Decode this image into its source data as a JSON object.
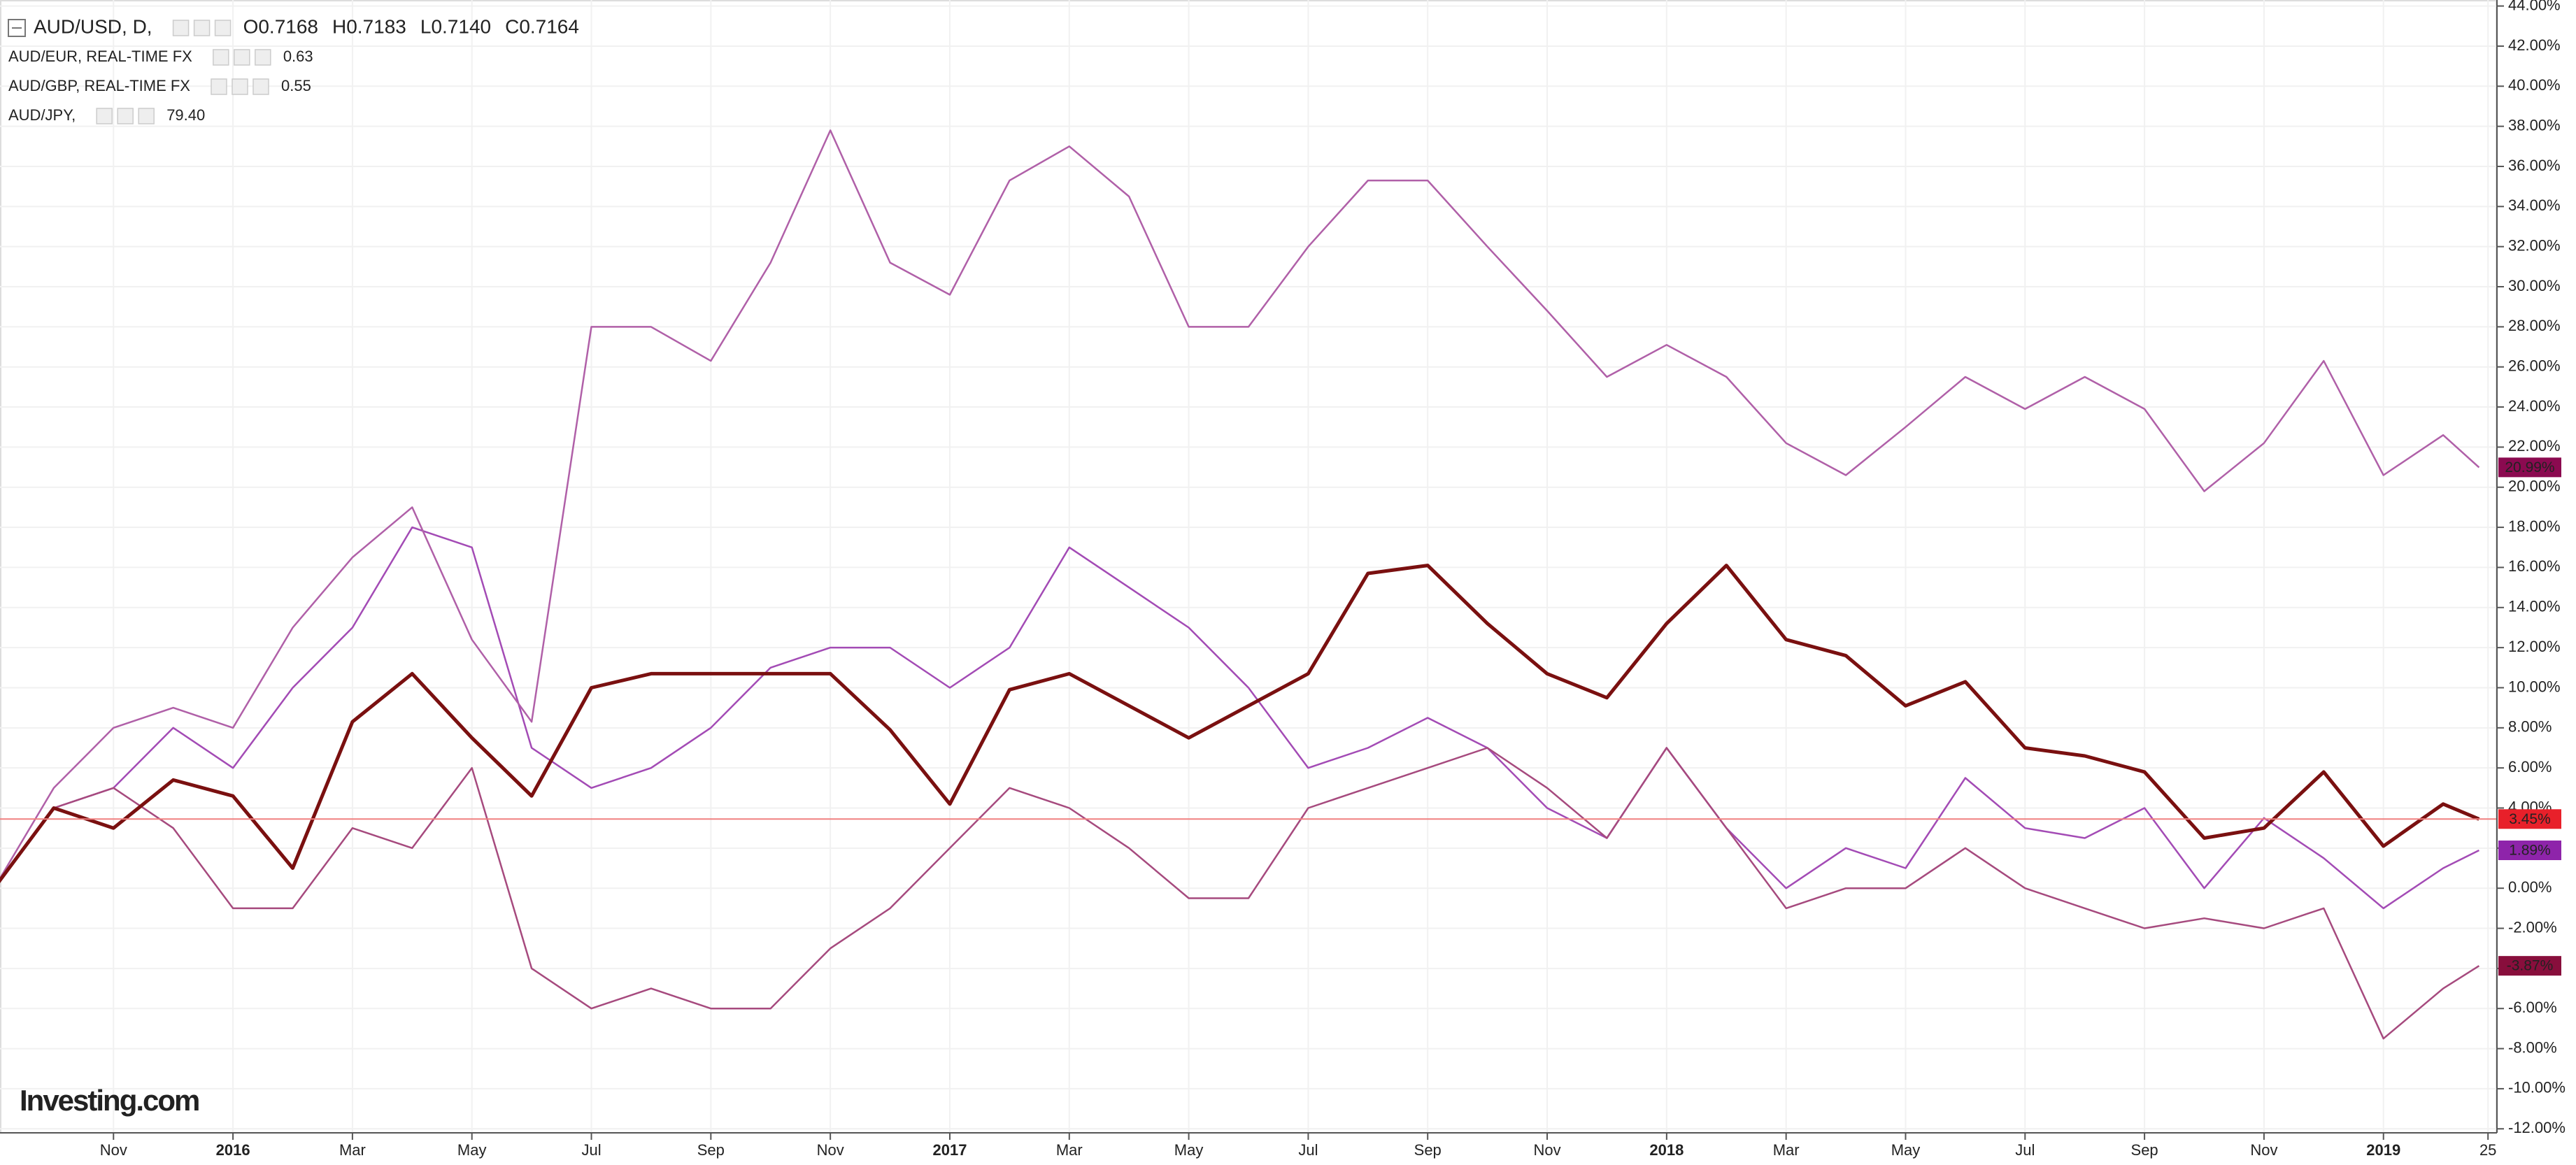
{
  "chart_data": {
    "type": "line",
    "watermark": "Investing.com",
    "x": [
      0,
      1,
      2,
      3,
      4,
      5,
      6,
      7,
      8,
      9,
      10,
      11,
      12,
      13,
      14,
      15,
      16,
      17,
      18,
      19,
      20,
      21,
      22,
      23,
      24,
      25,
      26,
      27,
      28,
      29,
      30,
      31,
      32,
      33,
      34,
      35,
      36,
      37,
      38,
      39,
      40,
      41,
      41.6
    ],
    "xlim": [
      0.1,
      41.9
    ],
    "xticks": [
      {
        "value": 2,
        "label": "Nov"
      },
      {
        "value": 4,
        "label": "2016"
      },
      {
        "value": 6,
        "label": "Mar"
      },
      {
        "value": 8,
        "label": "May"
      },
      {
        "value": 10,
        "label": "Jul"
      },
      {
        "value": 12,
        "label": "Sep"
      },
      {
        "value": 14,
        "label": "Nov"
      },
      {
        "value": 16,
        "label": "2017"
      },
      {
        "value": 18,
        "label": "Mar"
      },
      {
        "value": 20,
        "label": "May"
      },
      {
        "value": 22,
        "label": "Jul"
      },
      {
        "value": 24,
        "label": "Sep"
      },
      {
        "value": 26,
        "label": "Nov"
      },
      {
        "value": 28,
        "label": "2018"
      },
      {
        "value": 30,
        "label": "Mar"
      },
      {
        "value": 32,
        "label": "May"
      },
      {
        "value": 34,
        "label": "Jul"
      },
      {
        "value": 36,
        "label": "Sep"
      },
      {
        "value": 38,
        "label": "Nov"
      },
      {
        "value": 40,
        "label": "2019"
      },
      {
        "value": 41.75,
        "label": "25"
      }
    ],
    "ylim": [
      -12.2,
      44.3
    ],
    "yticks": [
      {
        "value": -12,
        "label": "-12.00%"
      },
      {
        "value": -10,
        "label": "-10.00%"
      },
      {
        "value": -8,
        "label": "-8.00%"
      },
      {
        "value": -6,
        "label": "-6.00%"
      },
      {
        "value": -4,
        "label": "-4.00%"
      },
      {
        "value": -2,
        "label": "-2.00%"
      },
      {
        "value": 0,
        "label": "0.00%"
      },
      {
        "value": 2,
        "label": "2.00%"
      },
      {
        "value": 4,
        "label": "4.00%"
      },
      {
        "value": 6,
        "label": "6.00%"
      },
      {
        "value": 8,
        "label": "8.00%"
      },
      {
        "value": 10,
        "label": "10.00%"
      },
      {
        "value": 12,
        "label": "12.00%"
      },
      {
        "value": 14,
        "label": "14.00%"
      },
      {
        "value": 16,
        "label": "16.00%"
      },
      {
        "value": 18,
        "label": "18.00%"
      },
      {
        "value": 20,
        "label": "20.00%"
      },
      {
        "value": 22,
        "label": "22.00%"
      },
      {
        "value": 24,
        "label": "24.00%"
      },
      {
        "value": 26,
        "label": "26.00%"
      },
      {
        "value": 28,
        "label": "28.00%"
      },
      {
        "value": 30,
        "label": "30.00%"
      },
      {
        "value": 32,
        "label": "32.00%"
      },
      {
        "value": 34,
        "label": "34.00%"
      },
      {
        "value": 36,
        "label": "36.00%"
      },
      {
        "value": 38,
        "label": "38.00%"
      },
      {
        "value": 40,
        "label": "40.00%"
      },
      {
        "value": 42,
        "label": "42.00%"
      },
      {
        "value": 44,
        "label": "44.00%"
      }
    ],
    "grid": true,
    "series": [
      {
        "name": "AUD/USD, D,",
        "color": "#7a1010",
        "quote": [
          "O0.7168",
          "H0.7183",
          "L0.7140",
          "C0.7164"
        ],
        "last_label": "3.45%",
        "label_color": "#e8202a",
        "price_line": true,
        "values": [
          0,
          4,
          3,
          5.4,
          4.6,
          1,
          8.3,
          10.7,
          7.5,
          4.6,
          10,
          10.7,
          10.7,
          10.7,
          10.7,
          7.9,
          4.2,
          9.9,
          10.7,
          9.1,
          7.5,
          9.1,
          10.7,
          15.7,
          16.1,
          13.2,
          10.7,
          9.5,
          13.2,
          16.1,
          12.4,
          11.6,
          9.1,
          10.3,
          7,
          6.6,
          5.8,
          2.5,
          3,
          5.8,
          2.1,
          4.2,
          3.45
        ]
      },
      {
        "name": "AUD/EUR, REAL-TIME FX",
        "color": "#a34bb5",
        "quote": [
          "0.63"
        ],
        "last_label": "1.89%",
        "label_color": "#8e24aa",
        "values": [
          0,
          4,
          5,
          8,
          6,
          10,
          13,
          18,
          17,
          7,
          5,
          6,
          8,
          11,
          12,
          12,
          10,
          12,
          17,
          15,
          13,
          10,
          6,
          7,
          8.5,
          7,
          4,
          2.5,
          7,
          3,
          0,
          2,
          1,
          5.5,
          3,
          2.5,
          4,
          0,
          3.5,
          1.5,
          -1,
          1,
          1.89
        ]
      },
      {
        "name": "AUD/GBP, REAL-TIME FX",
        "color": "#a64a7e",
        "quote": [
          "0.55"
        ],
        "last_label": "-3.87%",
        "label_color": "#880e3c",
        "values": [
          0,
          4,
          5,
          3,
          -1,
          -1,
          3,
          2,
          6,
          -4,
          -6,
          -5,
          -6,
          -6,
          -3,
          -1,
          2,
          5,
          4,
          2,
          -0.5,
          -0.5,
          4,
          5,
          6,
          7,
          5,
          2.5,
          7,
          3,
          -1,
          0,
          0,
          2,
          0,
          -1,
          -2,
          -1.5,
          -2,
          -1,
          -7.5,
          -5,
          -3.87
        ]
      },
      {
        "name": "AUD/JPY,",
        "color": "#b060a8",
        "quote": [
          "79.40"
        ],
        "last_label": "20.99%",
        "label_color": "#8b0a50",
        "values": [
          0,
          5,
          8,
          9,
          8,
          13,
          16.5,
          19,
          12.4,
          8.3,
          28,
          28,
          26.3,
          31.2,
          37.8,
          31.2,
          29.6,
          35.3,
          37,
          34.5,
          28,
          28,
          32,
          35.3,
          35.3,
          32,
          28.8,
          25.5,
          27.1,
          25.5,
          22.2,
          20.6,
          23,
          25.5,
          23.9,
          25.5,
          23.9,
          19.8,
          22.2,
          26.3,
          20.6,
          22.6,
          20.99
        ]
      }
    ]
  }
}
